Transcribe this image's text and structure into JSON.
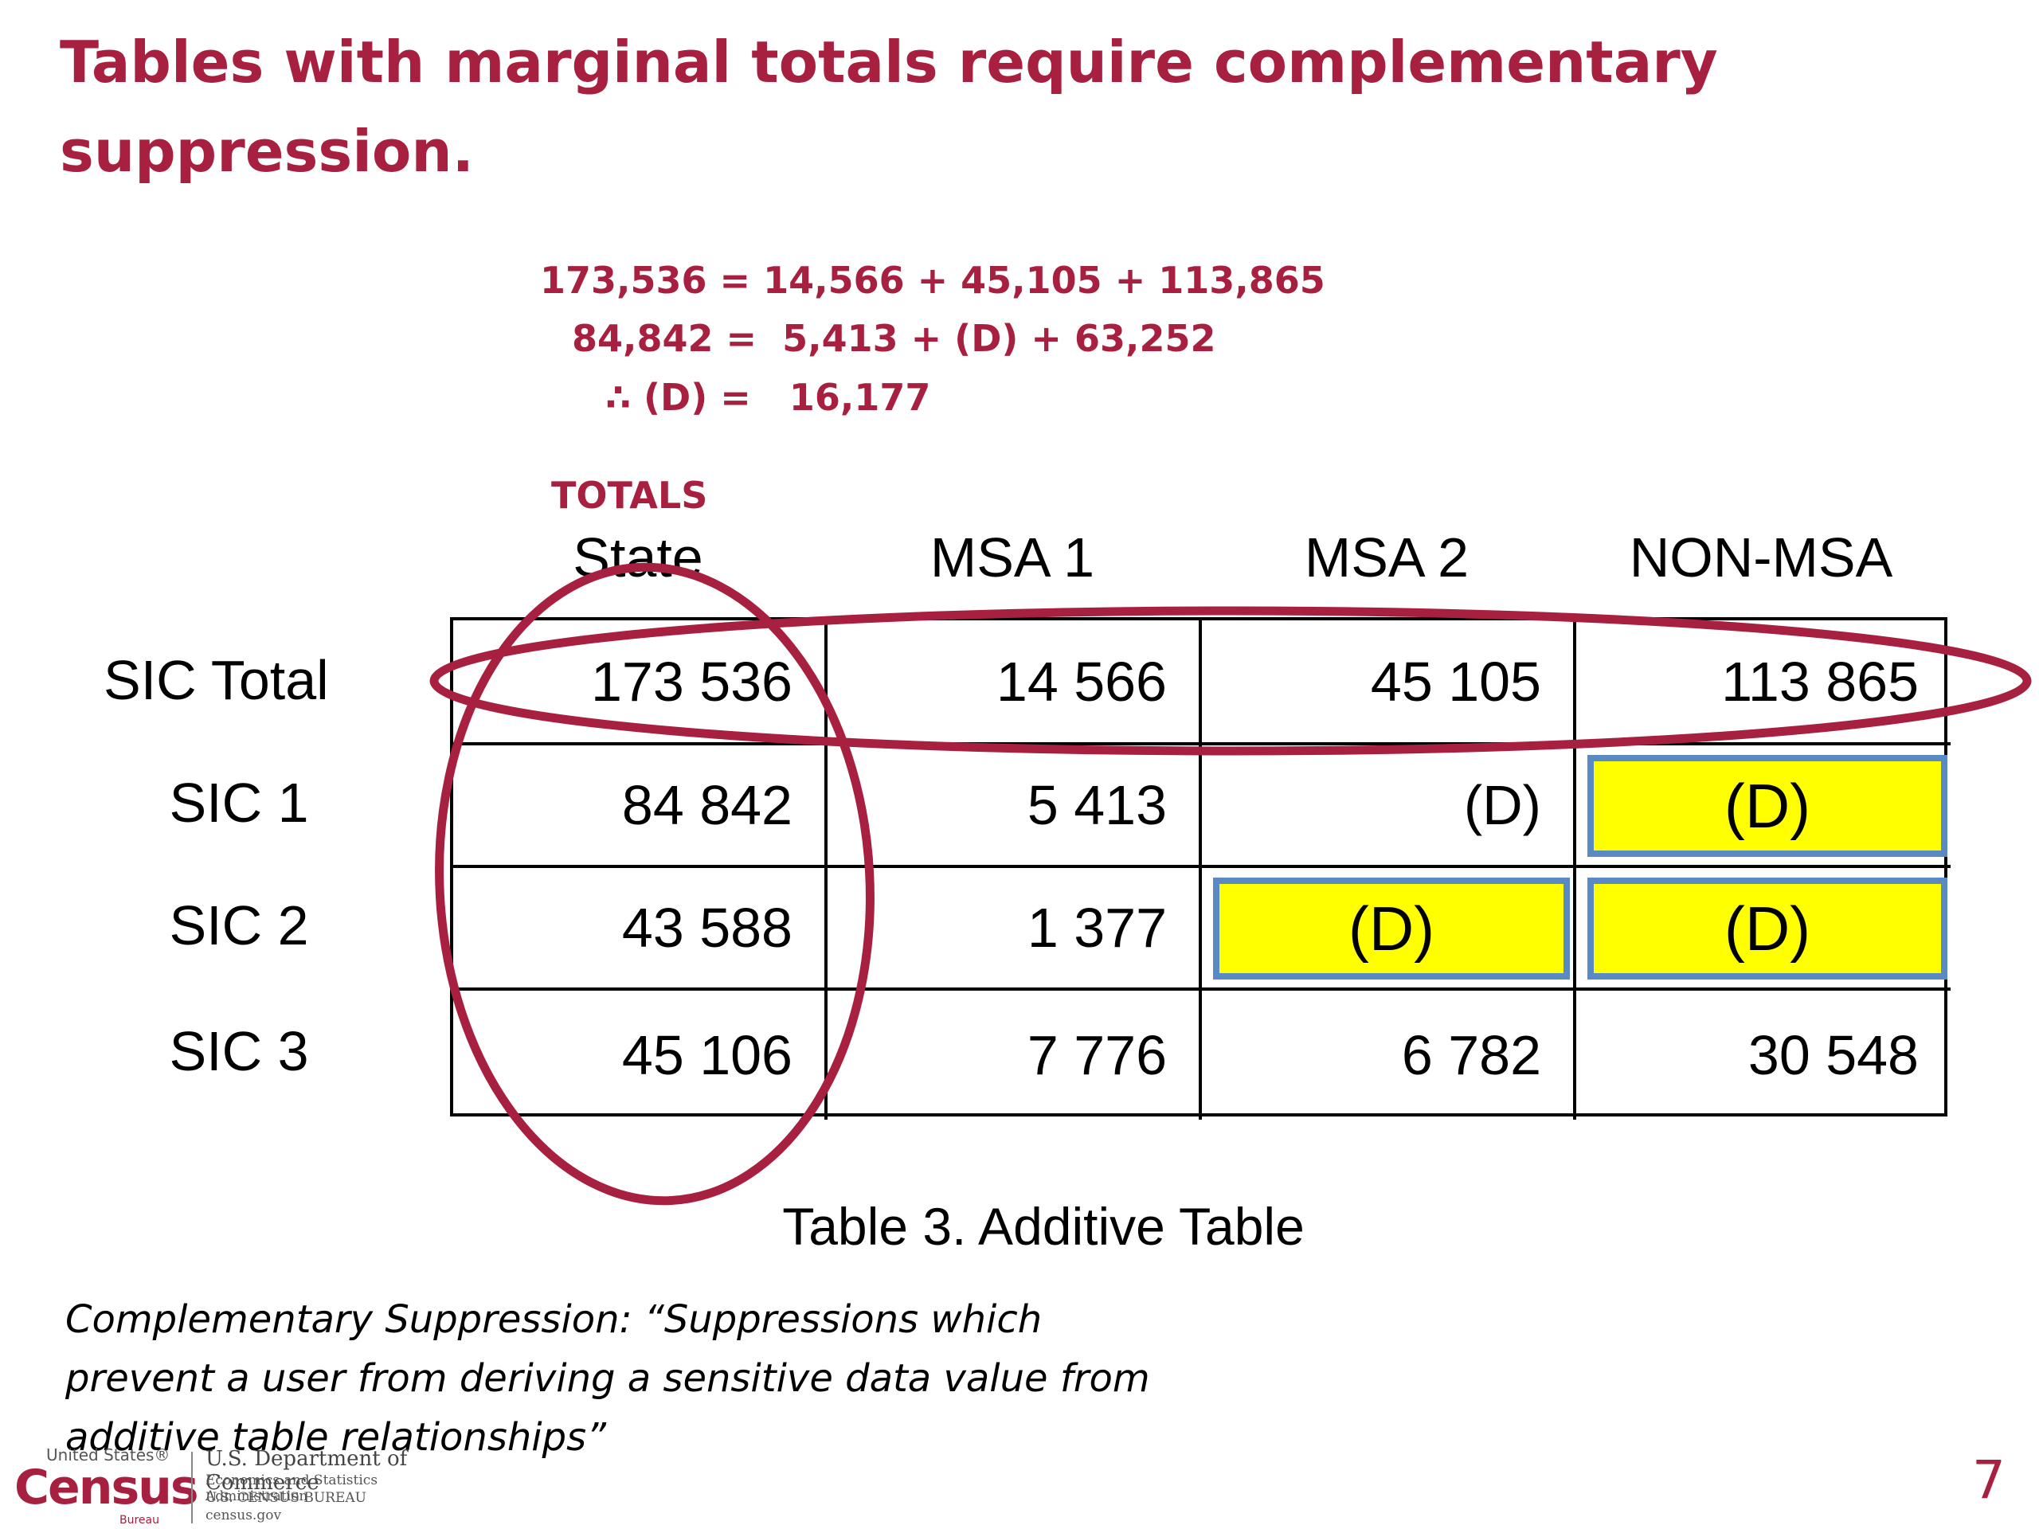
{
  "slide": {
    "title": "Tables with marginal totals require complementary suppression.",
    "equations": [
      "173,536 = 14,566 + 45,105 + 113,865",
      "84,842 =  5,413 + (D) + 63,252",
      "∴ (D) =   16,177"
    ],
    "totals_label": "TOTALS",
    "page_number": "7"
  },
  "table": {
    "columns": [
      "State",
      "MSA 1",
      "MSA 2",
      "NON-MSA"
    ],
    "rows": [
      {
        "label": "SIC Total",
        "cells": [
          "173 536",
          "14 566",
          "45 105",
          "113 865"
        ]
      },
      {
        "label": "SIC 1",
        "cells": [
          "84 842",
          "5 413",
          "(D)",
          "(D)"
        ]
      },
      {
        "label": "SIC 2",
        "cells": [
          "43 588",
          "1 377",
          "(D)",
          "(D)"
        ]
      },
      {
        "label": "SIC 3",
        "cells": [
          "45 106",
          "7 776",
          "6 782",
          "30 548"
        ]
      }
    ],
    "caption": "Table 3.  Additive Table",
    "highlighted_cells": [
      "SIC 1 / NON-MSA",
      "SIC 2 / MSA 2",
      "SIC 2 / NON-MSA"
    ],
    "highlight_color": "#ffff00",
    "highlight_border_color": "#5a8ac4",
    "oval_color": "#a8203f"
  },
  "definition": {
    "text": "Complementary Suppression: “Suppressions which prevent a user from deriving a sensitive data value from additive table relationships”"
  },
  "footer": {
    "logo_top": "United States®",
    "logo_name": "Census",
    "logo_bureau": "Bureau",
    "dept": "U.S. Department of Commerce",
    "line1": "Economics and Statistics Administration",
    "line2": "U.S. CENSUS BUREAU",
    "line3": "census.gov"
  }
}
